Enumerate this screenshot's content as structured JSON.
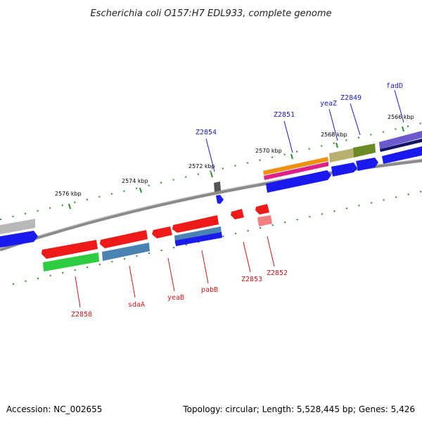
{
  "title": "Escherichia coli O157:H7 EDL933, complete genome",
  "footer": {
    "accession": "Accession: NC_002655",
    "summary": "Topology: circular; Length: 5,528,445 bp; Genes: 5,426"
  },
  "colors": {
    "forward_label": "#1a1acc",
    "reverse_label": "#cc1a1a",
    "backbone": "#888888",
    "tick": "#2a8a2a"
  },
  "scale_labels": [
    "2576 kbp",
    "2574 kbp",
    "2572 kbp",
    "2570 kbp",
    "2568 kbp",
    "2566 kbp"
  ],
  "genes_top": [
    "Z2854",
    "Z2851",
    "yeaZ",
    "Z2849",
    "fadD"
  ],
  "genes_bottom": [
    "Z2858",
    "sdaA",
    "yeaB",
    "pabB",
    "Z2853",
    "Z2852"
  ]
}
